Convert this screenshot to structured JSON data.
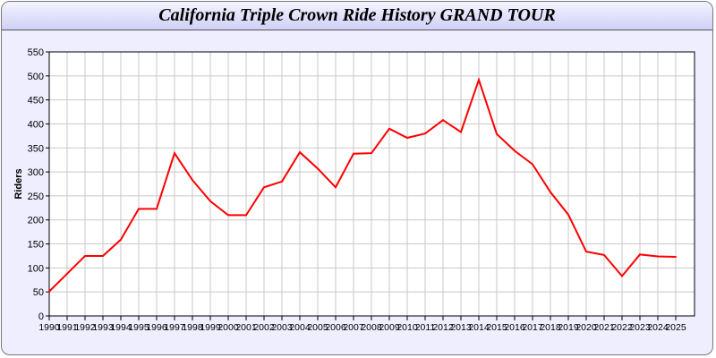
{
  "chart_data": {
    "type": "line",
    "title": "California Triple Crown Ride History GRAND TOUR",
    "xlabel": "",
    "ylabel": "Riders",
    "ylim": [
      0,
      550
    ],
    "yticks": [
      0,
      50,
      100,
      150,
      200,
      250,
      300,
      350,
      400,
      450,
      500,
      550
    ],
    "grid": true,
    "line_color": "#ff0000",
    "x": [
      1990,
      1991,
      1992,
      1993,
      1994,
      1995,
      1996,
      1997,
      1998,
      1999,
      2000,
      2001,
      2002,
      2003,
      2004,
      2005,
      2006,
      2007,
      2008,
      2009,
      2010,
      2011,
      2012,
      2013,
      2014,
      2015,
      2016,
      2017,
      2018,
      2019,
      2020,
      2021,
      2022,
      2023,
      2024,
      2025
    ],
    "values": [
      51,
      88,
      125,
      125,
      159,
      223,
      223,
      339,
      283,
      239,
      210,
      210,
      268,
      280,
      341,
      307,
      268,
      338,
      339,
      390,
      371,
      380,
      408,
      383,
      492,
      379,
      344,
      316,
      258,
      211,
      134,
      127,
      83,
      128,
      124,
      123
    ]
  }
}
